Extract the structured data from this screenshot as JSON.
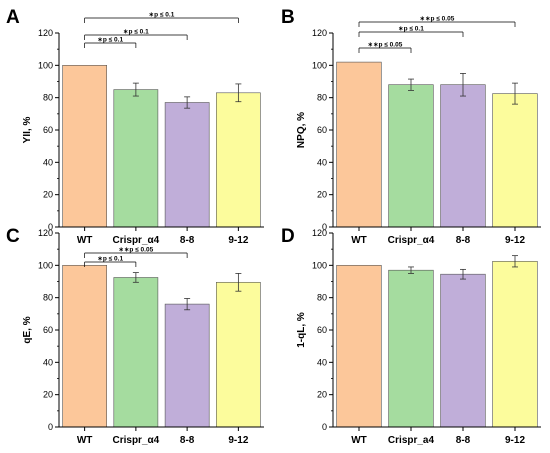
{
  "chart_data": [
    {
      "panel": "A",
      "type": "bar",
      "ylabel": "YII, %",
      "categories": [
        "WT",
        "Crispr_α4",
        "8-8",
        "9-12"
      ],
      "values": [
        100,
        85,
        77,
        83
      ],
      "errors": [
        0,
        4,
        3.5,
        5.5
      ],
      "ylim": [
        0,
        120
      ],
      "yticks": [
        "0",
        "20",
        "40",
        "60",
        "80",
        "100",
        "120"
      ],
      "colors": [
        "#fcc79a",
        "#a5dc9f",
        "#c0aed9",
        "#fcfc9c"
      ],
      "significance": [
        {
          "from": 0,
          "to": 1,
          "label": "∗p ≤ 0.1"
        },
        {
          "from": 0,
          "to": 2,
          "label": "∗p ≤ 0.1"
        },
        {
          "from": 0,
          "to": 3,
          "label": "∗p ≤ 0.1"
        }
      ]
    },
    {
      "panel": "B",
      "type": "bar",
      "ylabel": "NPQ, %",
      "categories": [
        "WT",
        "Crispr_α4",
        "8-8",
        "9-12"
      ],
      "values": [
        102,
        88,
        88,
        82.5
      ],
      "errors": [
        0,
        3.5,
        7,
        6.5
      ],
      "ylim": [
        0,
        120
      ],
      "yticks": [
        "0",
        "20",
        "40",
        "60",
        "80",
        "100",
        "120"
      ],
      "colors": [
        "#fcc79a",
        "#a5dc9f",
        "#c0aed9",
        "#fcfc9c"
      ],
      "significance": [
        {
          "from": 0,
          "to": 1,
          "label": "∗∗p ≤ 0.05"
        },
        {
          "from": 0,
          "to": 2,
          "label": "∗p ≤ 0.1"
        },
        {
          "from": 0,
          "to": 3,
          "label": "∗∗p ≤ 0.05"
        }
      ]
    },
    {
      "panel": "C",
      "type": "bar",
      "ylabel": "qE, %",
      "categories": [
        "WT",
        "Crispr_α4",
        "8-8",
        "9-12"
      ],
      "values": [
        100,
        92.5,
        76,
        89.5
      ],
      "errors": [
        0,
        3,
        3.5,
        5.5
      ],
      "ylim": [
        0,
        120
      ],
      "yticks": [
        "0",
        "20",
        "40",
        "60",
        "80",
        "100",
        "120"
      ],
      "colors": [
        "#fcc79a",
        "#a5dc9f",
        "#c0aed9",
        "#fcfc9c"
      ],
      "significance": [
        {
          "from": 0,
          "to": 1,
          "label": "∗p ≤ 0.1"
        },
        {
          "from": 0,
          "to": 2,
          "label": "∗∗p ≤ 0.05"
        }
      ]
    },
    {
      "panel": "D",
      "type": "bar",
      "ylabel": "1-qL, %",
      "categories": [
        "WT",
        "Crispr_a4",
        "8-8",
        "9-12"
      ],
      "values": [
        100,
        97,
        94.5,
        102.5
      ],
      "errors": [
        0,
        2,
        3,
        3.5
      ],
      "ylim": [
        0,
        120
      ],
      "yticks": [
        "0",
        "20",
        "40",
        "60",
        "80",
        "100",
        "120"
      ],
      "colors": [
        "#fcc79a",
        "#a5dc9f",
        "#c0aed9",
        "#fcfc9c"
      ],
      "significance": []
    }
  ]
}
